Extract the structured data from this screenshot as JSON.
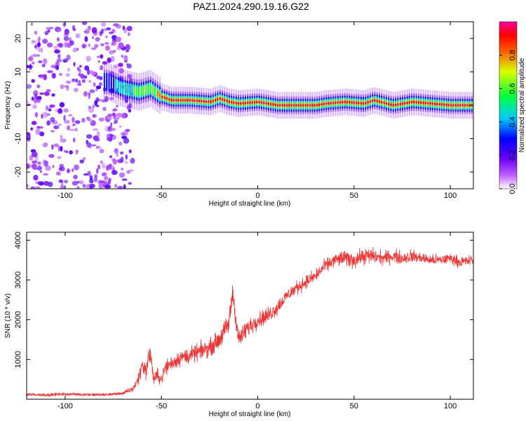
{
  "title": "PAZ1.2024.290.19.16.G22",
  "chart_data": [
    {
      "type": "heatmap",
      "xlabel": "Height of straight line (km)",
      "ylabel": "Frequency (Hz)",
      "xlim": [
        -120,
        112
      ],
      "ylim": [
        -25,
        25
      ],
      "x_ticks": [
        -100,
        -50,
        0,
        50,
        100
      ],
      "x_tick_labels": [
        "-100",
        "-50",
        "0",
        "50",
        "100"
      ],
      "y_ticks": [
        -20,
        -10,
        0,
        10,
        20
      ],
      "y_tick_labels": [
        "-20",
        "-10",
        "0",
        "10",
        "20"
      ],
      "colorbar": {
        "label": "Normalized spectral amplitude",
        "range": [
          0,
          1
        ],
        "ticks": [
          0,
          0.2,
          0.4,
          0.6,
          0.8
        ],
        "tick_labels": [
          "0.0",
          "0.2",
          "0.4",
          "0.6",
          "0.8"
        ],
        "colormap": "rainbow (white → violet → blue → cyan → green → yellow → red → magenta)"
      },
      "noise_region": {
        "x_range": [
          -120,
          -65
        ],
        "freq_range": [
          -25,
          25
        ],
        "amplitude": "low (≈0.1–0.3)"
      },
      "ridge": {
        "description": "dominant spectral line near 0 Hz, amplitude rising from low at -75 km to max (~1.0) for heights above -50 km",
        "points": [
          {
            "x": -78,
            "freq": 7
          },
          {
            "x": -70,
            "freq": 5
          },
          {
            "x": -62,
            "freq": 4
          },
          {
            "x": -56,
            "freq": 5
          },
          {
            "x": -50,
            "freq": 2.5
          },
          {
            "x": -45,
            "freq": 1.5
          },
          {
            "x": -35,
            "freq": 1.5
          },
          {
            "x": -25,
            "freq": 1
          },
          {
            "x": -20,
            "freq": 2
          },
          {
            "x": -15,
            "freq": 1
          },
          {
            "x": -10,
            "freq": 0.5
          },
          {
            "x": 0,
            "freq": 1
          },
          {
            "x": 10,
            "freq": 0
          },
          {
            "x": 20,
            "freq": 0
          },
          {
            "x": 30,
            "freq": 0
          },
          {
            "x": 35,
            "freq": 0.5
          },
          {
            "x": 45,
            "freq": 1
          },
          {
            "x": 55,
            "freq": 0.5
          },
          {
            "x": 60,
            "freq": 1.5
          },
          {
            "x": 70,
            "freq": 0
          },
          {
            "x": 80,
            "freq": 1
          },
          {
            "x": 90,
            "freq": 0.5
          },
          {
            "x": 100,
            "freq": 0
          },
          {
            "x": 112,
            "freq": 0
          }
        ]
      }
    },
    {
      "type": "line",
      "xlabel": "Height of straight line (km)",
      "ylabel": "SNR (10 * v/v)",
      "xlim": [
        -120,
        112
      ],
      "ylim": [
        0,
        4200
      ],
      "x_ticks": [
        -100,
        -50,
        0,
        50,
        100
      ],
      "x_tick_labels": [
        "-100",
        "-50",
        "0",
        "50",
        "100"
      ],
      "y_ticks": [
        1000,
        2000,
        3000,
        4000
      ],
      "y_tick_labels": [
        "1000",
        "2000",
        "3000",
        "4000"
      ],
      "color": "#ee3333",
      "series": [
        {
          "x": [
            -120,
            -110,
            -100,
            -90,
            -80,
            -70,
            -65,
            -62,
            -60,
            -58,
            -56,
            -54,
            -52,
            -50,
            -48,
            -45,
            -40,
            -35,
            -30,
            -25,
            -20,
            -15,
            -13,
            -10,
            -5,
            0,
            5,
            10,
            15,
            20,
            25,
            30,
            35,
            40,
            45,
            50,
            55,
            60,
            65,
            70,
            75,
            80,
            85,
            90,
            95,
            100,
            105,
            112
          ],
          "y": [
            120,
            110,
            130,
            120,
            110,
            150,
            250,
            500,
            900,
            700,
            1200,
            500,
            600,
            500,
            800,
            900,
            1050,
            1100,
            1200,
            1300,
            1500,
            1900,
            2700,
            1500,
            1800,
            2000,
            2100,
            2300,
            2600,
            2800,
            2950,
            3100,
            3350,
            3500,
            3550,
            3500,
            3600,
            3600,
            3550,
            3600,
            3550,
            3600,
            3550,
            3500,
            3500,
            3550,
            3450,
            3500
          ],
          "envelope_halfwidth": [
            60,
            60,
            60,
            60,
            60,
            60,
            120,
            250,
            350,
            300,
            400,
            250,
            250,
            250,
            300,
            300,
            300,
            300,
            320,
            320,
            350,
            400,
            450,
            350,
            350,
            300,
            300,
            300,
            250,
            250,
            250,
            250,
            250,
            250,
            300,
            300,
            300,
            300,
            250,
            250,
            250,
            250,
            200,
            200,
            200,
            200,
            200,
            200
          ]
        }
      ]
    }
  ]
}
